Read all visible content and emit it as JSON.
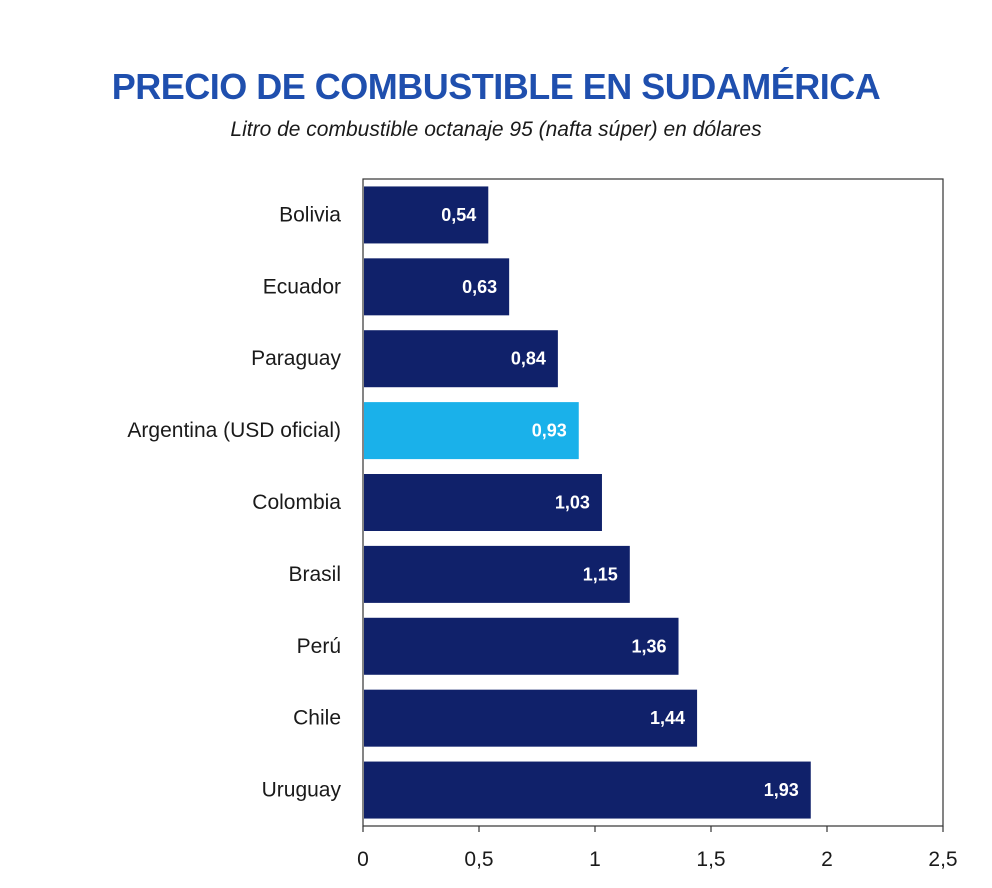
{
  "chart_data": {
    "type": "bar",
    "orientation": "horizontal",
    "title": "PRECIO DE COMBUSTIBLE EN SUDAMÉRICA",
    "subtitle": "Litro de combustible octanaje 95 (nafta súper) en dólares",
    "categories": [
      "Bolivia",
      "Ecuador",
      "Paraguay",
      "Argentina (USD oficial)",
      "Colombia",
      "Brasil",
      "Perú",
      "Chile",
      "Uruguay"
    ],
    "values": [
      0.54,
      0.63,
      0.84,
      0.93,
      1.03,
      1.15,
      1.36,
      1.44,
      1.93
    ],
    "value_labels": [
      "0,54",
      "0,63",
      "0,84",
      "0,93",
      "1,03",
      "1,15",
      "1,36",
      "1,44",
      "1,93"
    ],
    "highlight_category": "Argentina (USD oficial)",
    "xlim": [
      0,
      2.5
    ],
    "x_ticks": [
      0,
      0.5,
      1,
      1.5,
      2,
      2.5
    ],
    "x_tick_labels": [
      "0",
      "0,5",
      "1",
      "1,5",
      "2",
      "2,5"
    ],
    "xlabel": "",
    "ylabel": "",
    "grid": false,
    "colors": {
      "bar": "#10216a",
      "highlight": "#1ab1ea",
      "title": "#1f4fae",
      "axis": "#333333"
    }
  }
}
